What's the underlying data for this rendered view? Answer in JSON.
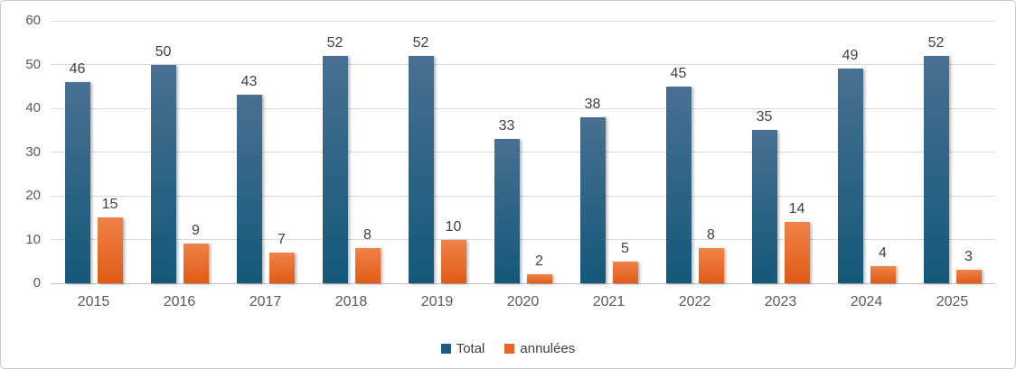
{
  "chart_data": {
    "type": "bar",
    "categories": [
      "2015",
      "2016",
      "2017",
      "2018",
      "2019",
      "2020",
      "2021",
      "2022",
      "2023",
      "2024",
      "2025"
    ],
    "series": [
      {
        "name": "Total",
        "values": [
          46,
          50,
          43,
          52,
          52,
          33,
          38,
          45,
          35,
          49,
          52
        ]
      },
      {
        "name": "annulées",
        "values": [
          15,
          9,
          7,
          8,
          10,
          2,
          5,
          8,
          14,
          4,
          3
        ]
      }
    ],
    "title": "",
    "xlabel": "",
    "ylabel": "",
    "ylim": [
      0,
      60
    ],
    "yticks": [
      0,
      10,
      20,
      30,
      40,
      50,
      60
    ],
    "grid": true,
    "legend_position": "bottom",
    "data_labels": true
  },
  "colors": {
    "total_top": "#487092",
    "total_bottom": "#14587a",
    "annulees_top": "#f08248",
    "annulees_bottom": "#e05a15",
    "gridline": "#d9d9d9",
    "axis_line": "#bfbfbf",
    "tick_label": "#595959",
    "data_label": "#404040",
    "legend_total": "#1b5e80",
    "legend_annulees": "#e8662a",
    "border": "#c9c9c9"
  }
}
